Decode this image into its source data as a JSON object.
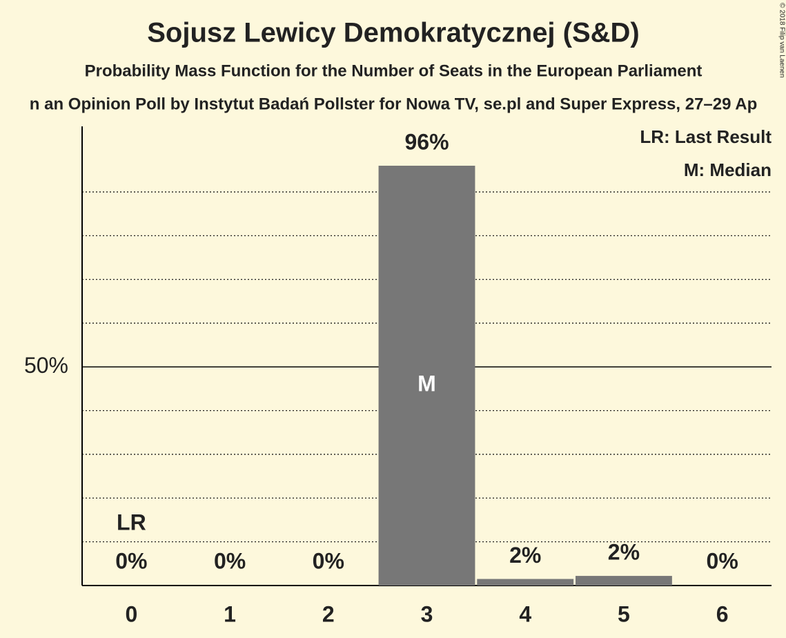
{
  "chart_data": {
    "type": "bar",
    "title": "Sojusz Lewicy Demokratycznej (S&D)",
    "subtitle": "Probability Mass Function for the Number of Seats in the European Parliament",
    "subtitle2": "n an Opinion Poll by Instytut Badań Pollster for Nowa TV, se.pl and Super Express, 27–29 Ap",
    "copyright": "© 2018 Filip van Laenen",
    "categories": [
      "0",
      "1",
      "2",
      "3",
      "4",
      "5",
      "6"
    ],
    "values": [
      0,
      0,
      0,
      96,
      1.5,
      2.2,
      0
    ],
    "value_labels": [
      "0%",
      "0%",
      "0%",
      "96%",
      "2%",
      "2%",
      "0%"
    ],
    "color": "#777777",
    "ylim": [
      0,
      105
    ],
    "yticks": [
      {
        "value": 50,
        "label": "50%"
      }
    ],
    "minor_grid": [
      10,
      20,
      30,
      40,
      60,
      70,
      80,
      90
    ],
    "grid": true,
    "last_result": {
      "label": "LR",
      "category": "0"
    },
    "median": {
      "label": "M",
      "category": "3"
    },
    "legend": [
      "LR: Last Result",
      "M: Median"
    ],
    "legend_position": "upper right"
  }
}
